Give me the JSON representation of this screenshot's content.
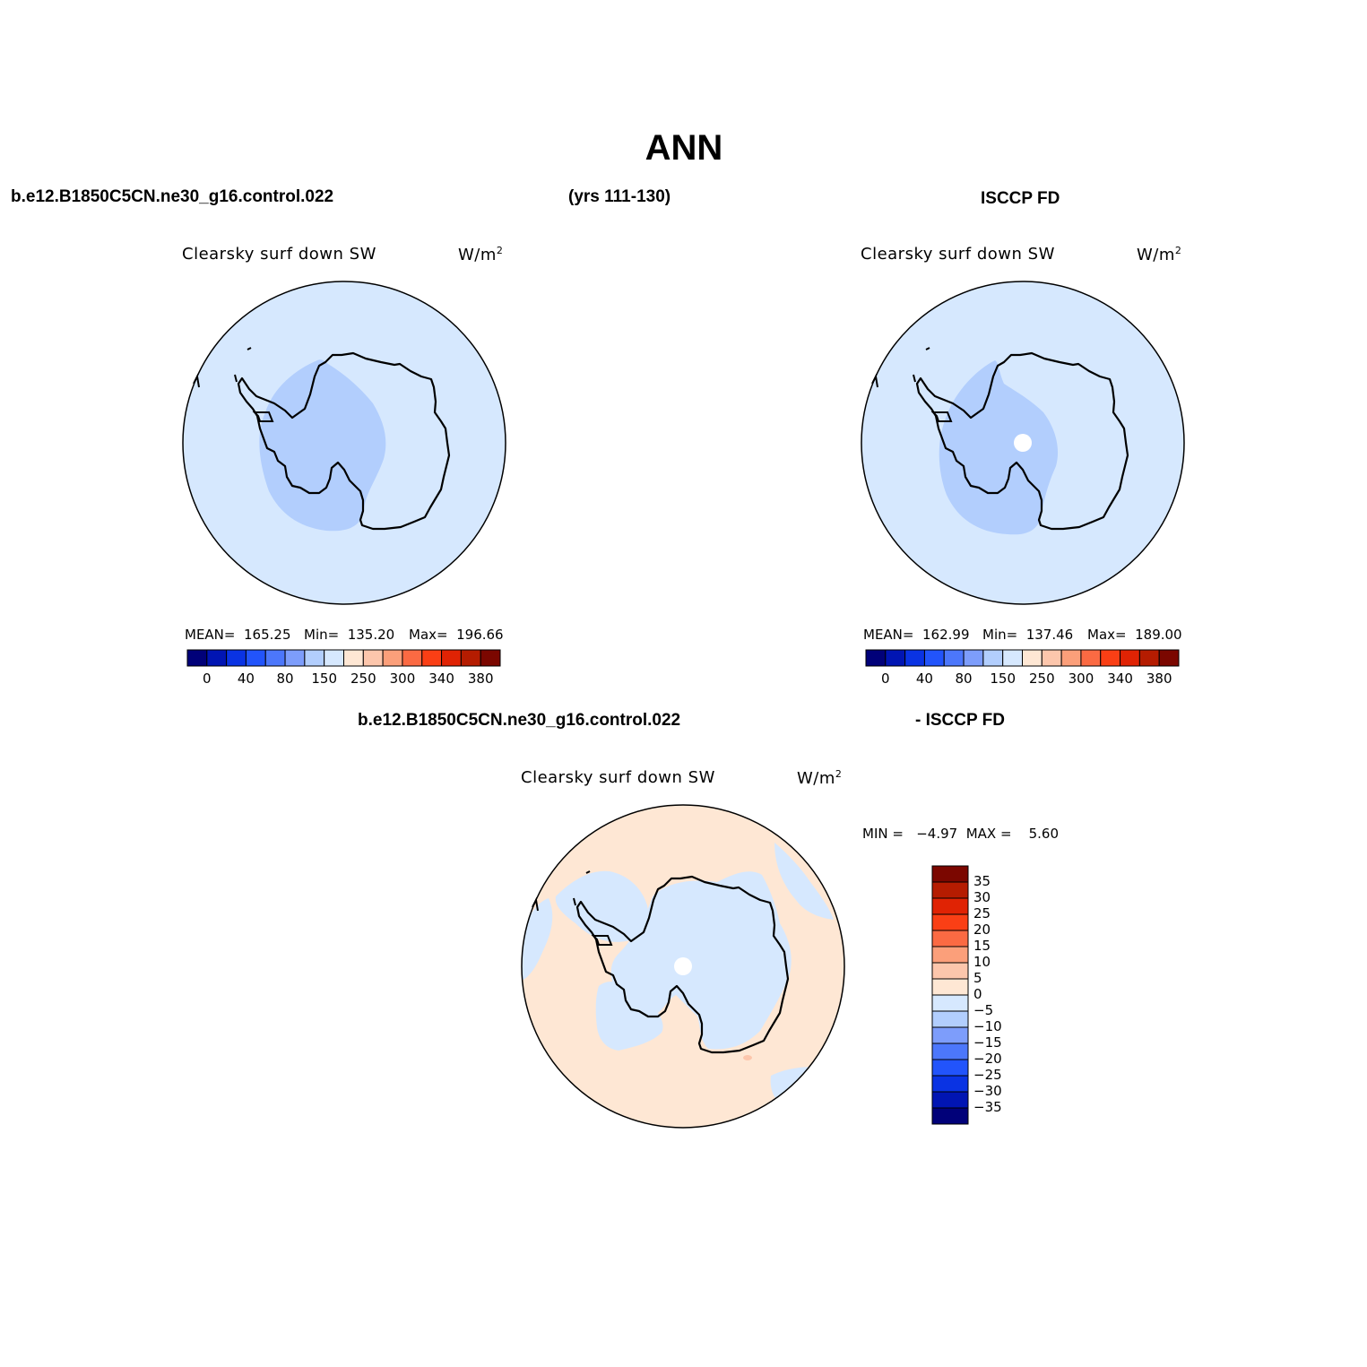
{
  "header": {
    "title": "ANN",
    "case_name": "b.e12.B1850C5CN.ne30_g16.control.022",
    "years": "(yrs 111-130)",
    "obs_name": "ISCCP FD"
  },
  "panels": [
    {
      "field_label": "Clearsky  surf  down  SW",
      "units_base": "W/m",
      "units_exp": "2",
      "stats": {
        "mean": "MEAN=  165.25",
        "min": "Min=  135.20",
        "max": "Max=  196.66"
      },
      "colorbar_labels": [
        "0",
        "40",
        "80",
        "150",
        "250",
        "300",
        "340",
        "380"
      ]
    },
    {
      "field_label": "Clearsky  surf  down  SW",
      "units_base": "W/m",
      "units_exp": "2",
      "stats": {
        "mean": "MEAN=  162.99",
        "min": "Min=  137.46",
        "max": "Max=  189.00"
      },
      "colorbar_labels": [
        "0",
        "40",
        "80",
        "150",
        "250",
        "300",
        "340",
        "380"
      ]
    },
    {
      "case_name": "b.e12.B1850C5CN.ne30_g16.control.022",
      "obs_name": "- ISCCP FD",
      "field_label": "Clearsky  surf  down  SW",
      "units_base": "W/m",
      "units_exp": "2",
      "minmax": "MIN =   −4.97  MAX =    5.60",
      "colorbar_labels": [
        "35",
        "30",
        "25",
        "20",
        "15",
        "10",
        "5",
        "0",
        "−5",
        "−10",
        "−15",
        "−20",
        "−25",
        "−30",
        "−35"
      ]
    }
  ],
  "colors": {
    "ocean_fill": "#d6e8fe",
    "low_fill": "#b2cefd",
    "diff_pos": "#fee7d4",
    "diff_neg": "#d6e8fe",
    "diff_pos2": "#fcc6ac",
    "pole_hole": "#ffffff",
    "coast": "#000000",
    "palette_horizontal": [
      "#010179",
      "#0115b3",
      "#0a33e3",
      "#2254fb",
      "#4c77fb",
      "#7d9dfb",
      "#b2cefd",
      "#d6e8fe",
      "#fee7d4",
      "#fcc6ac",
      "#fb9f7a",
      "#fb6a43",
      "#fa3f15",
      "#e02304",
      "#b51c01",
      "#7b0700"
    ],
    "palette_vertical": [
      "#7b0700",
      "#b51c01",
      "#e02304",
      "#fa3f15",
      "#fb6a43",
      "#fb9f7a",
      "#fcc6ac",
      "#fee7d4",
      "#d6e8fe",
      "#b2cefd",
      "#7d9dfb",
      "#4c77fb",
      "#2254fb",
      "#0a33e3",
      "#0115b3",
      "#010179"
    ]
  }
}
